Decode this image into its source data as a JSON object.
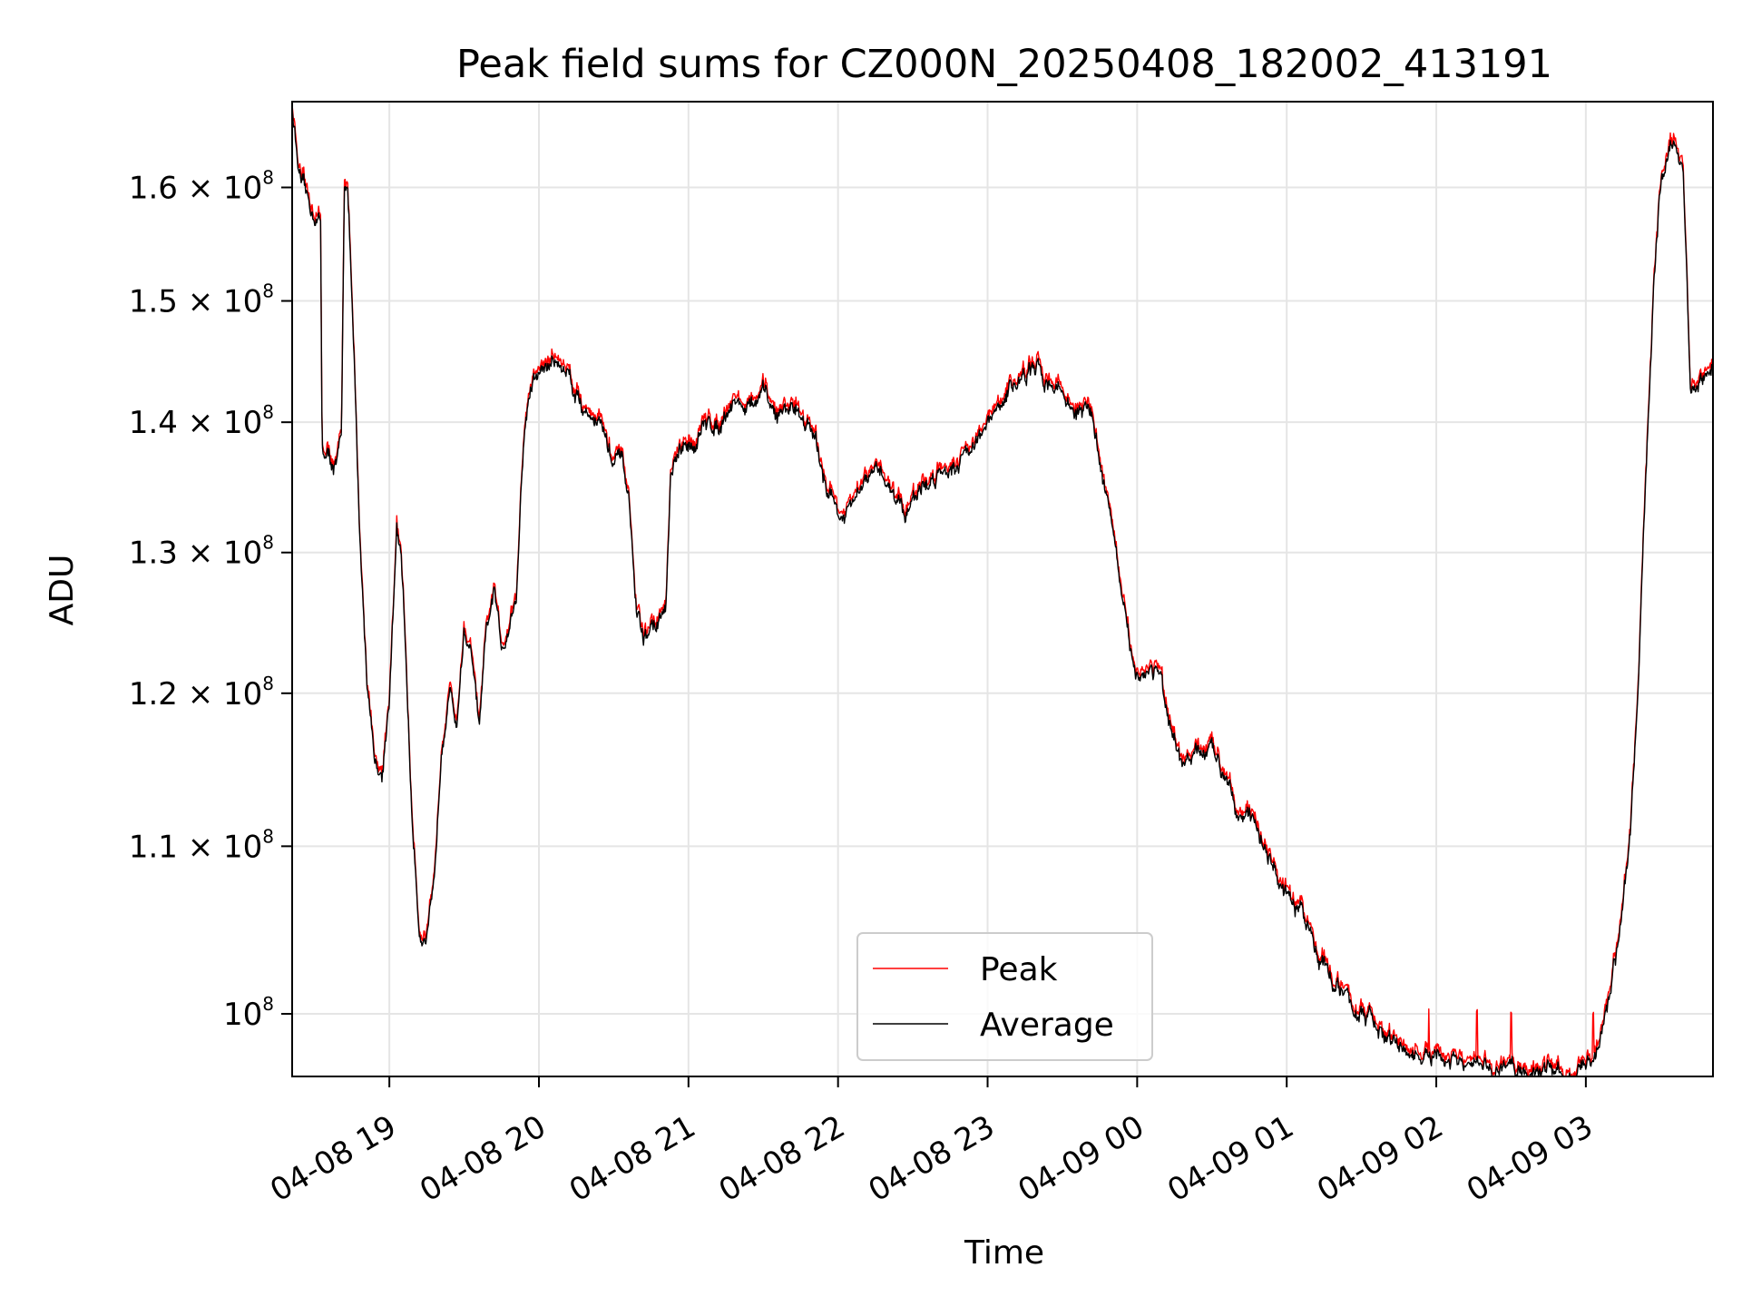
{
  "chart_data": {
    "type": "line",
    "title": "Peak field sums for CZ000N_20250408_182002_413191",
    "xlabel": "Time",
    "ylabel": "ADU",
    "yscale": "log",
    "ylim": [
      96500000,
      168000000
    ],
    "xlim_hours": [
      -0.65,
      8.85
    ],
    "x_ticks": [
      {
        "label": "04-08 19",
        "hour": 0
      },
      {
        "label": "04-08 20",
        "hour": 1
      },
      {
        "label": "04-08 21",
        "hour": 2
      },
      {
        "label": "04-08 22",
        "hour": 3
      },
      {
        "label": "04-08 23",
        "hour": 4
      },
      {
        "label": "04-09 00",
        "hour": 5
      },
      {
        "label": "04-09 01",
        "hour": 6
      },
      {
        "label": "04-09 02",
        "hour": 7
      },
      {
        "label": "04-09 03",
        "hour": 8
      }
    ],
    "y_ticks": [
      {
        "mantissa": "10",
        "exp": "8",
        "value": 100000000
      },
      {
        "mantissa": "1.1 × 10",
        "exp": "8",
        "value": 110000000
      },
      {
        "mantissa": "1.2 × 10",
        "exp": "8",
        "value": 120000000
      },
      {
        "mantissa": "1.3 × 10",
        "exp": "8",
        "value": 130000000
      },
      {
        "mantissa": "1.4 × 10",
        "exp": "8",
        "value": 140000000
      },
      {
        "mantissa": "1.5 × 10",
        "exp": "8",
        "value": 150000000
      },
      {
        "mantissa": "1.6 × 10",
        "exp": "8",
        "value": 160000000
      }
    ],
    "grid": true,
    "legend_position": "bottom-center",
    "series": [
      {
        "name": "Peak",
        "color": "#ff0000",
        "offset_frac": 0.003,
        "spike_hours": [
          7.27,
          6.95,
          7.5,
          8.05
        ]
      },
      {
        "name": "Average",
        "color": "#000000",
        "offset_frac": 0.0
      }
    ],
    "x_hours": [
      -0.65,
      -0.6,
      -0.55,
      -0.5,
      -0.46,
      -0.45,
      -0.4,
      -0.35,
      -0.32,
      -0.3,
      -0.28,
      -0.25,
      -0.2,
      -0.15,
      -0.1,
      -0.05,
      0,
      0.05,
      0.08,
      0.1,
      0.15,
      0.2,
      0.22,
      0.25,
      0.3,
      0.35,
      0.4,
      0.45,
      0.5,
      0.55,
      0.6,
      0.62,
      0.65,
      0.7,
      0.75,
      0.8,
      0.85,
      0.9,
      0.95,
      1,
      1.1,
      1.2,
      1.3,
      1.4,
      1.45,
      1.5,
      1.55,
      1.6,
      1.65,
      1.7,
      1.75,
      1.8,
      1.85,
      1.88,
      1.9,
      2,
      2.1,
      2.2,
      2.3,
      2.4,
      2.5,
      2.6,
      2.7,
      2.8,
      2.9,
      3,
      3.05,
      3.1,
      3.2,
      3.3,
      3.4,
      3.45,
      3.5,
      3.6,
      3.7,
      3.8,
      3.9,
      4,
      4.1,
      4.2,
      4.3,
      4.4,
      4.5,
      4.55,
      4.6,
      4.65,
      4.7,
      4.75,
      4.8,
      4.85,
      4.9,
      4.95,
      5,
      5.05,
      5.1,
      5.15,
      5.2,
      5.25,
      5.3,
      5.4,
      5.5,
      5.6,
      5.7,
      5.8,
      5.9,
      6,
      6.1,
      6.2,
      6.3,
      6.4,
      6.5,
      6.6,
      6.7,
      6.8,
      6.9,
      7,
      7.1,
      7.2,
      7.3,
      7.4,
      7.5,
      7.6,
      7.7,
      7.8,
      7.9,
      8,
      8.05,
      8.1,
      8.2,
      8.3,
      8.35,
      8.4,
      8.45,
      8.5,
      8.55,
      8.6,
      8.65,
      8.7,
      8.8,
      8.85
    ],
    "average_values": [
      167500000,
      160500000,
      158500000,
      157500000,
      156800000,
      138000000,
      137000000,
      136500000,
      138500000,
      161000000,
      160500000,
      150000000,
      131000000,
      121000000,
      116000000,
      114300000,
      120000000,
      131500000,
      129000000,
      125000000,
      112000000,
      105000000,
      104800000,
      104300000,
      107000000,
      117000000,
      120500000,
      118000000,
      124500000,
      122500000,
      117500000,
      120000000,
      124000000,
      127000000,
      123000000,
      125000000,
      127000000,
      139000000,
      143000000,
      144000000,
      145000000,
      144000000,
      141000000,
      140500000,
      138500000,
      136500000,
      137000000,
      134000000,
      126000000,
      123500000,
      124500000,
      125000000,
      126000000,
      135000000,
      136500000,
      138000000,
      139500000,
      140000000,
      142000000,
      141000000,
      142000000,
      140500000,
      141500000,
      140000000,
      136000000,
      133000000,
      132500000,
      133500000,
      135500000,
      136000000,
      134000000,
      133000000,
      134500000,
      135000000,
      136500000,
      137000000,
      138500000,
      139500000,
      141500000,
      143500000,
      144000000,
      143500000,
      142500000,
      141500000,
      140500000,
      141000000,
      140500000,
      137000000,
      134500000,
      131000000,
      126000000,
      123000000,
      121500000,
      121500000,
      121800000,
      121700000,
      118000000,
      116000000,
      115000000,
      115800000,
      116000000,
      114800000,
      112000000,
      111300000,
      109000000,
      106600000,
      105800000,
      104000000,
      102000000,
      100800000,
      100000000,
      99200000,
      98300000,
      97800000,
      97500000,
      97300000,
      97200000,
      97000000,
      96800000,
      96900000,
      96900000,
      96800000,
      96900000,
      96800000,
      96800000,
      96800000,
      97200000,
      99000000,
      103000000,
      111000000,
      120000000,
      136000000,
      150000000,
      160000000,
      163000000,
      164000000,
      162000000,
      142000000,
      143500000,
      144500000
    ]
  }
}
